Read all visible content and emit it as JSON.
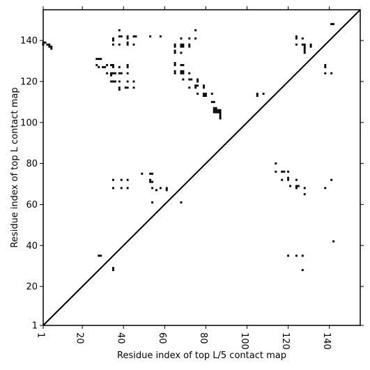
{
  "chart_data": {
    "type": "scatter",
    "title": "",
    "xlabel": "Residue index of top L/5 contact map",
    "ylabel": "Residue index of top L contact map",
    "xlim": [
      1,
      155
    ],
    "ylim": [
      1,
      155
    ],
    "x_ticks": [
      1,
      20,
      40,
      60,
      80,
      100,
      120,
      140
    ],
    "y_ticks": [
      1,
      20,
      40,
      60,
      80,
      100,
      120,
      140
    ],
    "grid": false,
    "diagonal": true,
    "marker_color": "#000000",
    "upper_triangle_points": [
      [
        1,
        139
      ],
      [
        2,
        139
      ],
      [
        3,
        138
      ],
      [
        4,
        137
      ],
      [
        5,
        137
      ],
      [
        5,
        136
      ],
      [
        4,
        138
      ],
      [
        1,
        138
      ],
      [
        27,
        131
      ],
      [
        28,
        131
      ],
      [
        29,
        131
      ],
      [
        27,
        128
      ],
      [
        28,
        127
      ],
      [
        30,
        127
      ],
      [
        31,
        127
      ],
      [
        32,
        128
      ],
      [
        34,
        128
      ],
      [
        35,
        128
      ],
      [
        35,
        127
      ],
      [
        32,
        124
      ],
      [
        34,
        124
      ],
      [
        35,
        124
      ],
      [
        36,
        124
      ],
      [
        34,
        123
      ],
      [
        34,
        120
      ],
      [
        35,
        120
      ],
      [
        36,
        120
      ],
      [
        35,
        141
      ],
      [
        35,
        140
      ],
      [
        35,
        138
      ],
      [
        38,
        142
      ],
      [
        39,
        142
      ],
      [
        38,
        145
      ],
      [
        38,
        138
      ],
      [
        42,
        142
      ],
      [
        42,
        141
      ],
      [
        42,
        139
      ],
      [
        42,
        138
      ],
      [
        45,
        142
      ],
      [
        46,
        142
      ],
      [
        45,
        138
      ],
      [
        53,
        142
      ],
      [
        58,
        142
      ],
      [
        38,
        127
      ],
      [
        38,
        124
      ],
      [
        39,
        124
      ],
      [
        42,
        128
      ],
      [
        42,
        127
      ],
      [
        42,
        124
      ],
      [
        38,
        120
      ],
      [
        38,
        117
      ],
      [
        38,
        116
      ],
      [
        41,
        117
      ],
      [
        42,
        117
      ],
      [
        42,
        120
      ],
      [
        45,
        120
      ],
      [
        45,
        117
      ],
      [
        65,
        138
      ],
      [
        65,
        137
      ],
      [
        65,
        135
      ],
      [
        65,
        134
      ],
      [
        65,
        129
      ],
      [
        65,
        128
      ],
      [
        65,
        125
      ],
      [
        65,
        124
      ],
      [
        68,
        141
      ],
      [
        68,
        138
      ],
      [
        68,
        137
      ],
      [
        69,
        138
      ],
      [
        69,
        137
      ],
      [
        68,
        134
      ],
      [
        68,
        128
      ],
      [
        69,
        128
      ],
      [
        68,
        125
      ],
      [
        68,
        124
      ],
      [
        69,
        125
      ],
      [
        69,
        124
      ],
      [
        69,
        121
      ],
      [
        72,
        141
      ],
      [
        72,
        138
      ],
      [
        72,
        137
      ],
      [
        72,
        124
      ],
      [
        72,
        121
      ],
      [
        73,
        121
      ],
      [
        72,
        117
      ],
      [
        75,
        145
      ],
      [
        75,
        141
      ],
      [
        75,
        118
      ],
      [
        75,
        117
      ],
      [
        76,
        121
      ],
      [
        76,
        120
      ],
      [
        76,
        118
      ],
      [
        76,
        114
      ],
      [
        79,
        118
      ],
      [
        79,
        117
      ],
      [
        79,
        114
      ],
      [
        79,
        113
      ],
      [
        80,
        114
      ],
      [
        80,
        113
      ],
      [
        83,
        114
      ],
      [
        83,
        110
      ],
      [
        84,
        110
      ],
      [
        84,
        107
      ],
      [
        84,
        106
      ],
      [
        84,
        105
      ],
      [
        85,
        107
      ],
      [
        85,
        106
      ],
      [
        85,
        105
      ],
      [
        86,
        106
      ],
      [
        86,
        105
      ],
      [
        87,
        106
      ],
      [
        87,
        105
      ],
      [
        87,
        104
      ],
      [
        87,
        103
      ],
      [
        87,
        102
      ],
      [
        105,
        114
      ],
      [
        105,
        113
      ],
      [
        108,
        114
      ],
      [
        124,
        142
      ],
      [
        124,
        141
      ],
      [
        124,
        138
      ],
      [
        127,
        141
      ],
      [
        127,
        138
      ],
      [
        128,
        138
      ],
      [
        128,
        137
      ],
      [
        128,
        136
      ],
      [
        128,
        135
      ],
      [
        128,
        134
      ],
      [
        131,
        138
      ],
      [
        131,
        137
      ],
      [
        138,
        128
      ],
      [
        138,
        127
      ],
      [
        138,
        124
      ],
      [
        141,
        148
      ],
      [
        142,
        148
      ],
      [
        141,
        124
      ]
    ],
    "lower_triangle_points": [
      [
        28,
        35
      ],
      [
        29,
        35
      ],
      [
        35,
        29
      ],
      [
        35,
        28
      ],
      [
        35,
        72
      ],
      [
        35,
        68
      ],
      [
        39,
        72
      ],
      [
        39,
        68
      ],
      [
        42,
        72
      ],
      [
        42,
        68
      ],
      [
        49,
        75
      ],
      [
        53,
        75
      ],
      [
        54,
        75
      ],
      [
        53,
        72
      ],
      [
        53,
        71
      ],
      [
        54,
        71
      ],
      [
        54,
        68
      ],
      [
        54,
        61
      ],
      [
        56,
        67
      ],
      [
        58,
        68
      ],
      [
        61,
        68
      ],
      [
        61,
        67
      ],
      [
        68,
        61
      ],
      [
        114,
        80
      ],
      [
        114,
        76
      ],
      [
        117,
        76
      ],
      [
        118,
        76
      ],
      [
        117,
        72
      ],
      [
        120,
        76
      ],
      [
        120,
        73
      ],
      [
        120,
        72
      ],
      [
        121,
        69
      ],
      [
        124,
        72
      ],
      [
        124,
        69
      ],
      [
        124,
        68
      ],
      [
        125,
        69
      ],
      [
        128,
        68
      ],
      [
        128,
        65
      ],
      [
        120,
        35
      ],
      [
        124,
        35
      ],
      [
        127,
        35
      ],
      [
        127,
        28
      ],
      [
        138,
        68
      ],
      [
        141,
        72
      ],
      [
        142,
        42
      ]
    ]
  }
}
